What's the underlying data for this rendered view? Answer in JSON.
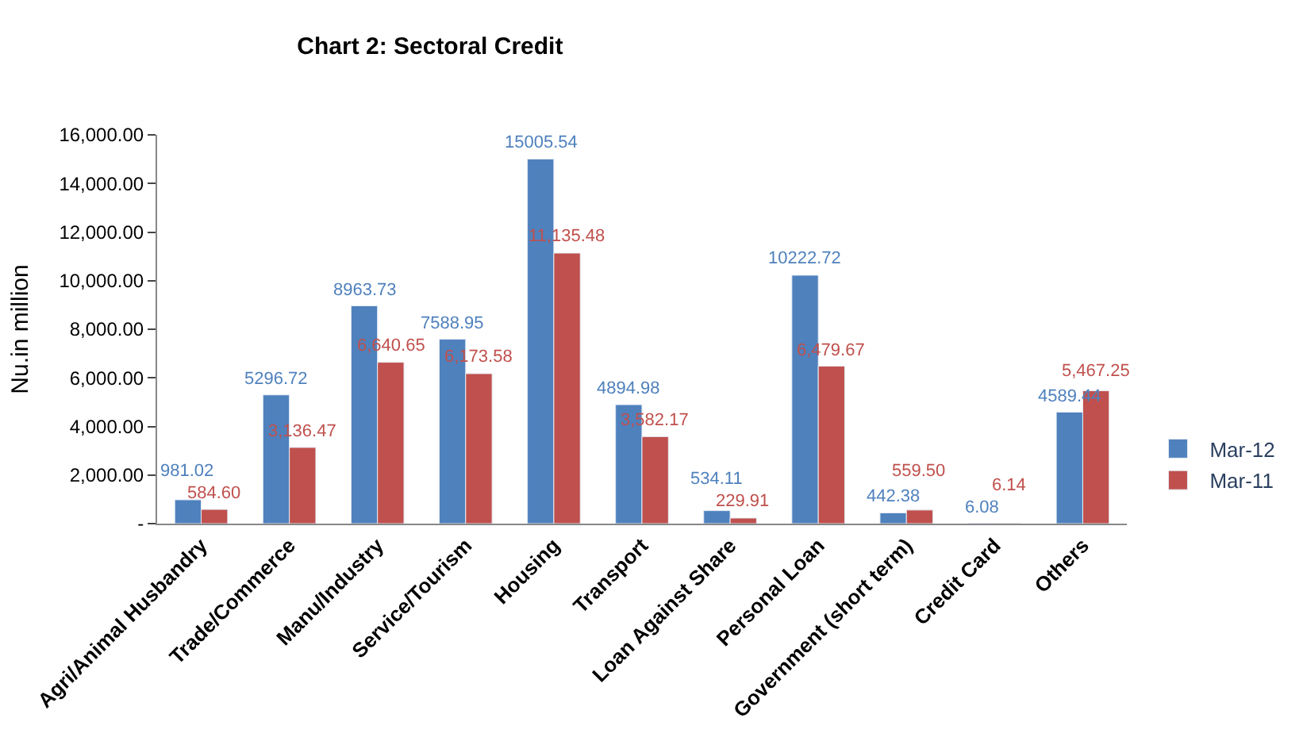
{
  "chart_data": {
    "type": "bar",
    "title": "Chart 2: Sectoral Credit",
    "ylabel": "Nu.in million",
    "categories": [
      "Agri/Animal Husbandry",
      "Trade/Commerce",
      "Manu/Industry",
      "Service/Tourism",
      "Housing",
      "Transport",
      "Loan Against Share",
      "Personal Loan",
      "Government (short term)",
      "Credit Card",
      "Others"
    ],
    "series": [
      {
        "name": "Mar-12",
        "color": "#4f81bd",
        "values": [
          981.02,
          5296.72,
          8963.73,
          7588.95,
          15005.54,
          4894.98,
          534.11,
          10222.72,
          442.38,
          6.08,
          4589.44
        ],
        "value_labels": [
          "981.02",
          "5296.72",
          "8963.73",
          "7588.95",
          "15005.54",
          "4894.98",
          "534.11",
          "10222.72",
          "442.38",
          "6.08",
          "4589.44"
        ]
      },
      {
        "name": "Mar-11",
        "color": "#c0504d",
        "values": [
          584.6,
          3136.47,
          6640.65,
          6173.58,
          11135.48,
          3582.17,
          229.91,
          6479.67,
          559.5,
          6.14,
          5467.25
        ],
        "value_labels": [
          "584.60",
          "3,136.47",
          "6,640.65",
          "6,173.58",
          "11,135.48",
          "3,582.17",
          "229.91",
          "6,479.67",
          "559.50",
          "6.14",
          "5,467.25"
        ]
      }
    ],
    "ylim": [
      0,
      16000
    ],
    "yticks": [
      {
        "value": 0,
        "label": "-"
      },
      {
        "value": 2000,
        "label": "2,000.00"
      },
      {
        "value": 4000,
        "label": "4,000.00"
      },
      {
        "value": 6000,
        "label": "6,000.00"
      },
      {
        "value": 8000,
        "label": "8,000.00"
      },
      {
        "value": 10000,
        "label": "10,000.00"
      },
      {
        "value": 12000,
        "label": "12,000.00"
      },
      {
        "value": 14000,
        "label": "14,000.00"
      },
      {
        "value": 16000,
        "label": "16,000.00"
      }
    ],
    "legend": "right"
  }
}
